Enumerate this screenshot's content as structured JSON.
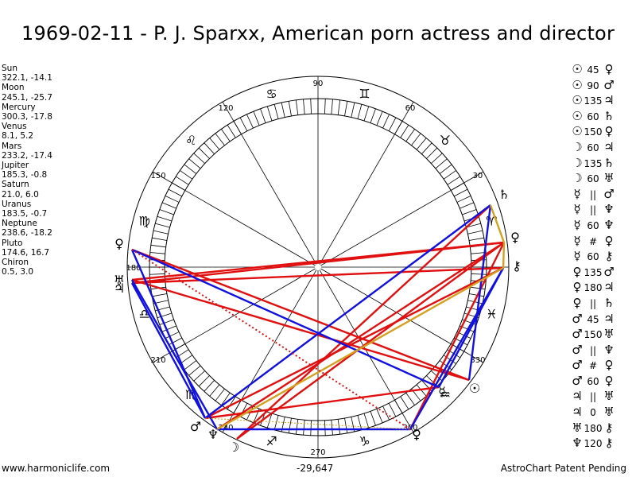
{
  "title": "1969-02-11 - P. J. Sparxx, American porn actress and director",
  "planets": [
    {
      "name": "Sun",
      "pos": "322.1, -14.1"
    },
    {
      "name": "Moon",
      "pos": "245.1, -25.7"
    },
    {
      "name": "Mercury",
      "pos": "300.3, -17.8"
    },
    {
      "name": "Venus",
      "pos": "8.1, 5.2"
    },
    {
      "name": "Mars",
      "pos": "233.2, -17.4"
    },
    {
      "name": "Jupiter",
      "pos": "185.3, -0.8"
    },
    {
      "name": "Saturn",
      "pos": "21.0, 6.0"
    },
    {
      "name": "Uranus",
      "pos": "183.5, -0.7"
    },
    {
      "name": "Neptune",
      "pos": "238.6, -18.2"
    },
    {
      "name": "Pluto",
      "pos": "174.6, 16.7"
    },
    {
      "name": "Chiron",
      "pos": "0.5, 3.0"
    }
  ],
  "aspects": [
    {
      "p1": "☉",
      "asp": "45",
      "p2": "♀"
    },
    {
      "p1": "☉",
      "asp": "90",
      "p2": "♂"
    },
    {
      "p1": "☉",
      "asp": "135",
      "p2": "♃"
    },
    {
      "p1": "☉",
      "asp": "60",
      "p2": "♄"
    },
    {
      "p1": "☉",
      "asp": "150",
      "p2": "♀"
    },
    {
      "p1": "☽",
      "asp": "60",
      "p2": "♃"
    },
    {
      "p1": "☽",
      "asp": "135",
      "p2": "♄"
    },
    {
      "p1": "☽",
      "asp": "60",
      "p2": "♅"
    },
    {
      "p1": "☿",
      "asp": "||",
      "p2": "♂"
    },
    {
      "p1": "☿",
      "asp": "||",
      "p2": "♆"
    },
    {
      "p1": "☿",
      "asp": "60",
      "p2": "♆"
    },
    {
      "p1": "☿",
      "asp": "#",
      "p2": "♀"
    },
    {
      "p1": "☿",
      "asp": "60",
      "p2": "⚷"
    },
    {
      "p1": "♀",
      "asp": "135",
      "p2": "♂"
    },
    {
      "p1": "♀",
      "asp": "180",
      "p2": "♃"
    },
    {
      "p1": "♀",
      "asp": "||",
      "p2": "♄"
    },
    {
      "p1": "♂",
      "asp": "45",
      "p2": "♃"
    },
    {
      "p1": "♂",
      "asp": "150",
      "p2": "♅"
    },
    {
      "p1": "♂",
      "asp": "||",
      "p2": "♆"
    },
    {
      "p1": "♂",
      "asp": "#",
      "p2": "♀"
    },
    {
      "p1": "♂",
      "asp": "60",
      "p2": "♀"
    },
    {
      "p1": "♃",
      "asp": "||",
      "p2": "♅"
    },
    {
      "p1": "♃",
      "asp": "0",
      "p2": "♅"
    },
    {
      "p1": "♅",
      "asp": "180",
      "p2": "⚷"
    },
    {
      "p1": "♆",
      "asp": "120",
      "p2": "⚷"
    }
  ],
  "wheel": {
    "degree_labels": [
      "90",
      "60",
      "30",
      "330",
      "300",
      "270",
      "240",
      "210",
      "180",
      "150",
      "120"
    ],
    "bottom_readout": "-29,647"
  },
  "zodiac_glyphs": [
    "♈",
    "♉",
    "♊",
    "♋",
    "♌",
    "♍",
    "♎",
    "♏",
    "♐",
    "♑",
    "♒",
    "♓"
  ],
  "planet_glyphs": {
    "sun": "☉",
    "moon": "☽",
    "mercury": "☿",
    "venus": "♀",
    "mars": "♂",
    "jupiter": "♃",
    "saturn": "♄",
    "uranus": "♅",
    "neptune": "♆",
    "pluto": "♀",
    "chiron": "⚷"
  },
  "colors": {
    "red": "#e01010",
    "blue": "#1010e0",
    "gold": "#d4a020"
  },
  "footer": {
    "left": "www.harmoniclife.com",
    "center": "-29,647",
    "right": "AstroChart Patent Pending"
  }
}
